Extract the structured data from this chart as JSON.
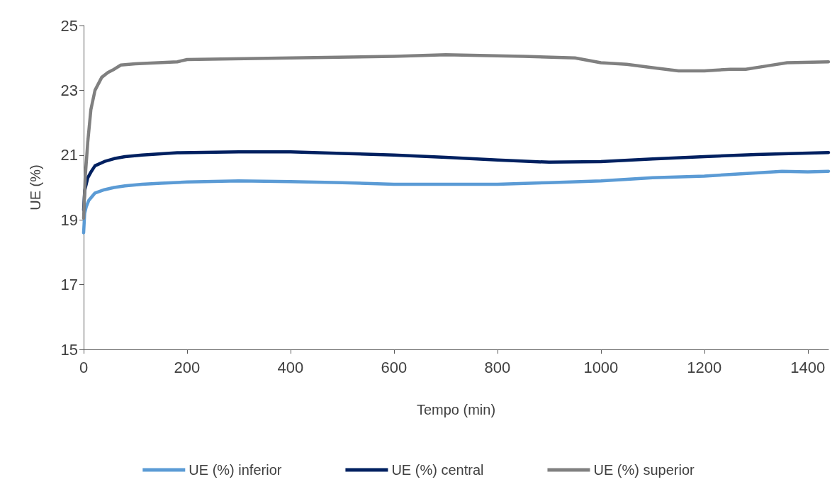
{
  "chart_data": {
    "type": "line",
    "xlabel": "Tempo (min)",
    "ylabel": "UE (%)",
    "xlim": [
      0,
      1440
    ],
    "xticks": [
      0,
      200,
      400,
      600,
      800,
      1000,
      1200,
      1400
    ],
    "ylim": [
      15,
      25
    ],
    "yticks": [
      15,
      17,
      19,
      21,
      23,
      25
    ],
    "grid": false,
    "legend": "bottom",
    "marker": "none",
    "line_style": "solid",
    "series": [
      {
        "name": "UE (%) inferior",
        "color": "#5b9bd5",
        "x": [
          0,
          2,
          5,
          10,
          22,
          40,
          59,
          80,
          113,
          150,
          200,
          300,
          400,
          500,
          600,
          700,
          800,
          900,
          1000,
          1100,
          1200,
          1300,
          1350,
          1400,
          1440
        ],
        "values": [
          18.6,
          19.2,
          19.4,
          19.6,
          19.83,
          19.93,
          20.0,
          20.05,
          20.1,
          20.13,
          20.17,
          20.2,
          20.18,
          20.15,
          20.1,
          20.1,
          20.1,
          20.15,
          20.2,
          20.3,
          20.35,
          20.45,
          20.5,
          20.48,
          20.5
        ]
      },
      {
        "name": "UE (%) central",
        "color": "#002060",
        "x": [
          0,
          2,
          5,
          8,
          15,
          22,
          40,
          59,
          80,
          113,
          181,
          300,
          400,
          500,
          600,
          700,
          800,
          900,
          1000,
          1100,
          1200,
          1300,
          1440
        ],
        "values": [
          19.3,
          19.9,
          20.1,
          20.3,
          20.5,
          20.67,
          20.8,
          20.89,
          20.95,
          21.0,
          21.07,
          21.1,
          21.1,
          21.05,
          21.0,
          20.93,
          20.85,
          20.78,
          20.8,
          20.88,
          20.95,
          21.02,
          21.08
        ]
      },
      {
        "name": "UE (%) superior",
        "color": "#808080",
        "x": [
          0,
          3,
          8,
          14,
          22,
          35,
          47,
          59,
          72,
          100,
          181,
          200,
          400,
          600,
          700,
          850,
          950,
          1000,
          1050,
          1100,
          1150,
          1200,
          1250,
          1280,
          1320,
          1360,
          1440
        ],
        "values": [
          19.05,
          20.3,
          21.4,
          22.4,
          23.0,
          23.4,
          23.55,
          23.65,
          23.78,
          23.82,
          23.88,
          23.95,
          24.0,
          24.05,
          24.1,
          24.05,
          24.0,
          23.85,
          23.8,
          23.7,
          23.6,
          23.6,
          23.65,
          23.65,
          23.75,
          23.85,
          23.88
        ]
      }
    ]
  }
}
